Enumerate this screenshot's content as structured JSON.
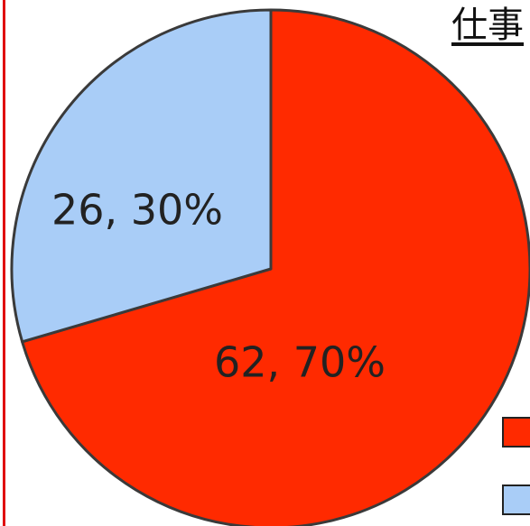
{
  "chart_data": {
    "type": "pie",
    "title": "仕事",
    "slices": [
      {
        "label": "62, 70%",
        "value": 62,
        "percent": 70,
        "color": "#ff2a00"
      },
      {
        "label": "26, 30%",
        "value": 26,
        "percent": 30,
        "color": "#a9cdf7"
      }
    ],
    "start_angle_deg": -90,
    "direction": "clockwise",
    "legend": "right"
  }
}
